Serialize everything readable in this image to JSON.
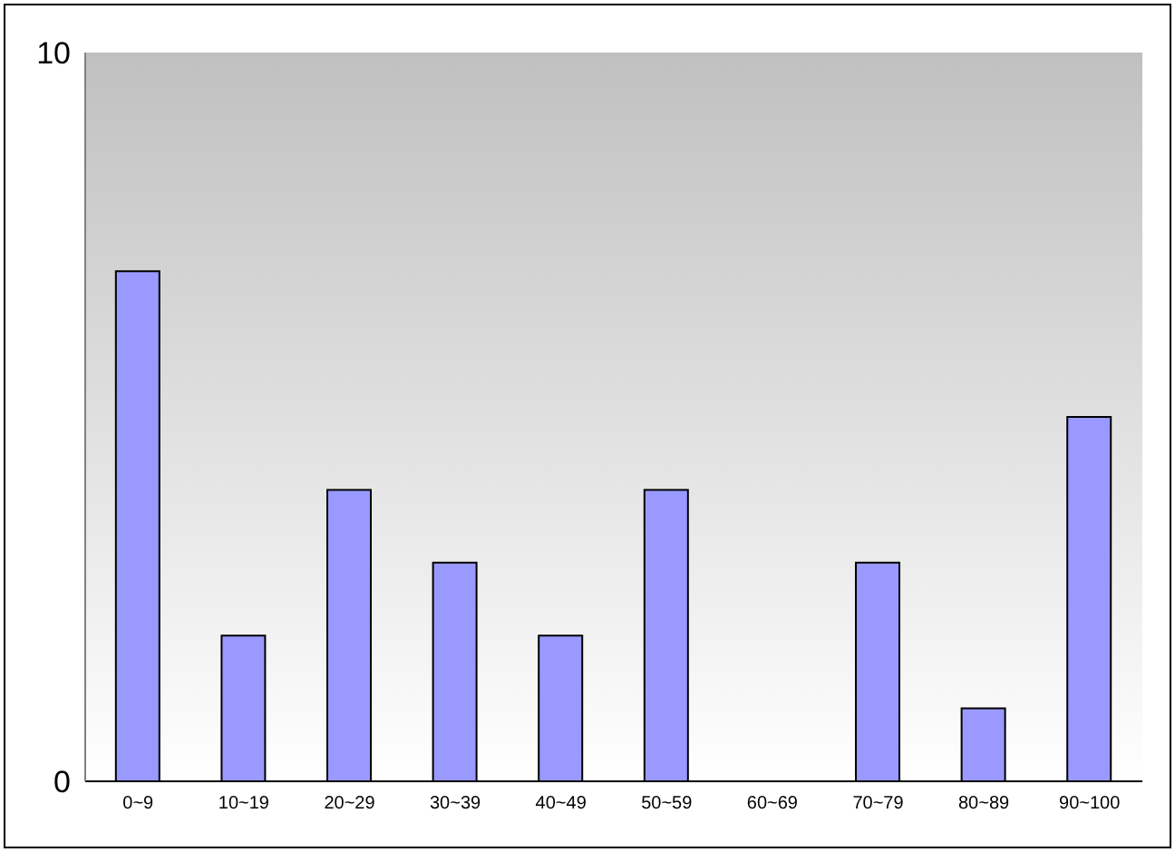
{
  "chart_data": {
    "type": "bar",
    "categories": [
      "0~9",
      "10~19",
      "20~29",
      "30~39",
      "40~49",
      "50~59",
      "60~69",
      "70~79",
      "80~89",
      "90~100"
    ],
    "values": [
      7,
      2,
      4,
      3,
      2,
      4,
      0,
      3,
      1,
      5
    ],
    "color": "#9999ff",
    "ylim": [
      0,
      10
    ],
    "yticks": [
      0,
      10
    ],
    "grid": false
  }
}
